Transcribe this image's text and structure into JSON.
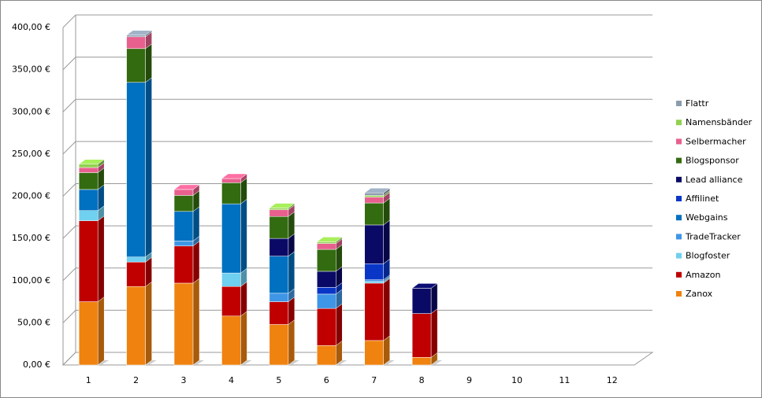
{
  "chart_data": {
    "type": "bar3d-stacked",
    "categories": [
      "1",
      "2",
      "3",
      "4",
      "5",
      "6",
      "7",
      "8",
      "9",
      "10",
      "11",
      "12"
    ],
    "series": [
      {
        "name": "Zanox",
        "color": "#f0820f",
        "values": [
          75,
          93,
          97,
          58,
          48,
          23,
          29,
          9,
          null,
          null,
          null,
          null
        ]
      },
      {
        "name": "Amazon",
        "color": "#c00000",
        "values": [
          96,
          29,
          44,
          35,
          27,
          44,
          68,
          52,
          null,
          null,
          null,
          null
        ]
      },
      {
        "name": "Blogfoster",
        "color": "#6fd0f0",
        "values": [
          12,
          6,
          null,
          16,
          null,
          null,
          2,
          null,
          null,
          null,
          null,
          null
        ]
      },
      {
        "name": "TradeTracker",
        "color": "#3f96e6",
        "values": [
          null,
          null,
          6,
          null,
          10,
          17,
          2,
          null,
          null,
          null,
          null,
          null
        ]
      },
      {
        "name": "Webgains",
        "color": "#0070c0",
        "values": [
          25,
          207,
          35,
          82,
          44,
          null,
          null,
          null,
          null,
          null,
          null,
          null
        ]
      },
      {
        "name": "Affilinet",
        "color": "#0a36c8",
        "values": [
          null,
          null,
          null,
          null,
          null,
          8,
          19,
          null,
          null,
          null,
          null,
          null
        ]
      },
      {
        "name": "Lead alliance",
        "color": "#0a0a66",
        "values": [
          null,
          null,
          null,
          null,
          21,
          19,
          46,
          30,
          null,
          null,
          null,
          null
        ]
      },
      {
        "name": "Blogsponsor",
        "color": "#336b10",
        "values": [
          20,
          40,
          19,
          25,
          26,
          26,
          26,
          null,
          null,
          null,
          null,
          null
        ]
      },
      {
        "name": "Selbermacher",
        "color": "#e8608e",
        "values": [
          6,
          14,
          7,
          5,
          8,
          7,
          7,
          null,
          null,
          null,
          null,
          null
        ]
      },
      {
        "name": "Namensbänder",
        "color": "#92d050",
        "values": [
          4,
          null,
          null,
          null,
          2,
          2,
          2,
          null,
          null,
          null,
          null,
          null
        ]
      },
      {
        "name": "Flattr",
        "color": "#8c9cae",
        "values": [
          null,
          2,
          null,
          null,
          null,
          null,
          3,
          null,
          null,
          null,
          null,
          null
        ]
      }
    ],
    "ylim": [
      0,
      400
    ],
    "yticks": [
      {
        "value": 0,
        "label": "0,00 €"
      },
      {
        "value": 50,
        "label": "50,00 €"
      },
      {
        "value": 100,
        "label": "100,00 €"
      },
      {
        "value": 150,
        "label": "150,00 €"
      },
      {
        "value": 200,
        "label": "200,00 €"
      },
      {
        "value": 250,
        "label": "250,00 €"
      },
      {
        "value": 300,
        "label": "300,00 €"
      },
      {
        "value": 350,
        "label": "350,00 €"
      },
      {
        "value": 400,
        "label": "400,00 €"
      }
    ],
    "grid": true,
    "legend": "right"
  }
}
